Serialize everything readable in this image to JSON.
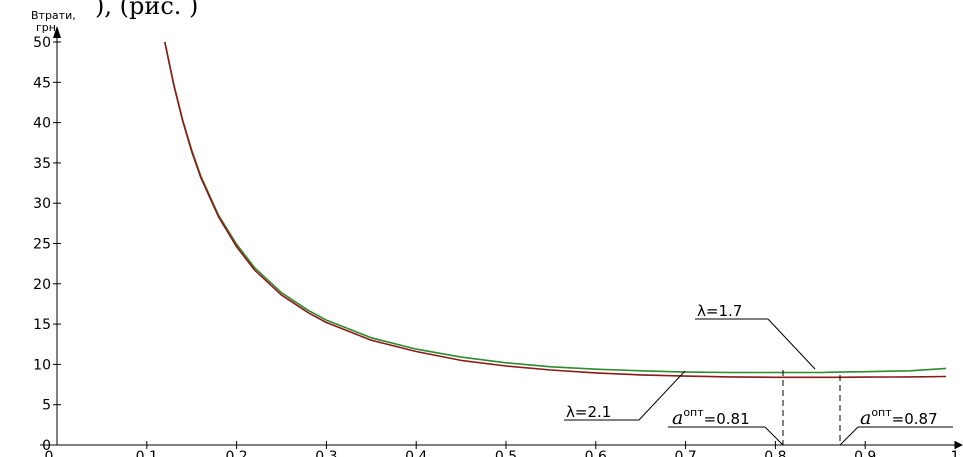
{
  "header_fragment": "), (рис. )",
  "chart_data": {
    "type": "line",
    "ylabel_line1": "Втрати,",
    "ylabel_line2": "грн.",
    "xlabel": "",
    "xlim": [
      0,
      1
    ],
    "ylim": [
      0,
      50
    ],
    "x_ticks": [
      "0",
      "0.1",
      "0.2",
      "0.3",
      "0.4",
      "0.5",
      "0.6",
      "0.7",
      "0.8",
      "0.9",
      "1"
    ],
    "y_ticks": [
      "0",
      "5",
      "10",
      "15",
      "20",
      "25",
      "30",
      "35",
      "40",
      "45",
      "50"
    ],
    "grid": false,
    "series": [
      {
        "label": "λ=1.7",
        "color": "#2e8b2e",
        "x": [
          0.12,
          0.13,
          0.14,
          0.15,
          0.16,
          0.18,
          0.2,
          0.22,
          0.25,
          0.28,
          0.3,
          0.35,
          0.4,
          0.45,
          0.5,
          0.55,
          0.6,
          0.65,
          0.7,
          0.75,
          0.8,
          0.81,
          0.85,
          0.87,
          0.9,
          0.95,
          0.99
        ],
        "y": [
          50,
          44.8,
          40.3,
          36.6,
          33.4,
          28.5,
          24.9,
          22.0,
          18.9,
          16.7,
          15.5,
          13.3,
          11.9,
          10.9,
          10.2,
          9.7,
          9.4,
          9.2,
          9.05,
          9.0,
          9.0,
          9.0,
          9.0,
          9.05,
          9.1,
          9.2,
          9.5
        ]
      },
      {
        "label": "λ=2.1",
        "color": "#8b1a1a",
        "x": [
          0.12,
          0.13,
          0.14,
          0.15,
          0.16,
          0.18,
          0.2,
          0.22,
          0.25,
          0.28,
          0.3,
          0.35,
          0.4,
          0.45,
          0.5,
          0.55,
          0.6,
          0.65,
          0.7,
          0.75,
          0.8,
          0.81,
          0.85,
          0.87,
          0.9,
          0.95,
          0.99
        ],
        "y": [
          50,
          44.7,
          40.2,
          36.4,
          33.2,
          28.3,
          24.6,
          21.7,
          18.6,
          16.4,
          15.2,
          13.0,
          11.6,
          10.5,
          9.8,
          9.3,
          8.95,
          8.7,
          8.55,
          8.45,
          8.4,
          8.4,
          8.4,
          8.4,
          8.42,
          8.45,
          8.5
        ]
      }
    ],
    "annotations": [
      {
        "text": "λ=1.7"
      },
      {
        "text": "λ=2.1"
      },
      {
        "a": "a",
        "sup": "опт",
        "value": "=0.81"
      },
      {
        "a": "a",
        "sup": "опт",
        "value": "=0.87"
      }
    ],
    "optima": [
      0.81,
      0.87
    ]
  }
}
